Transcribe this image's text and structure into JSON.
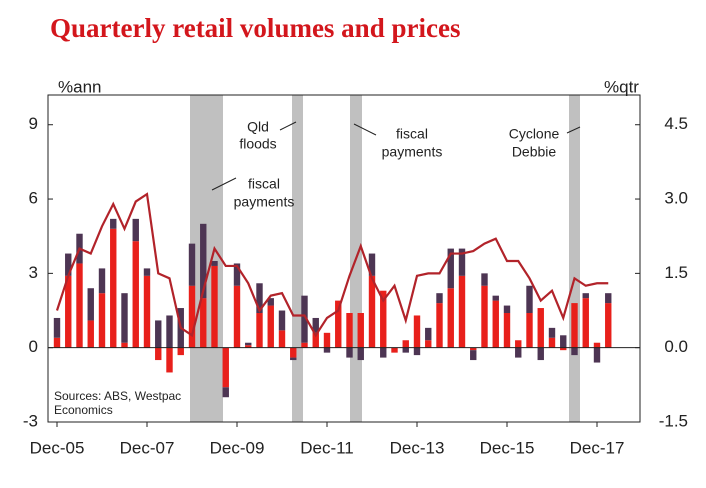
{
  "chart_data": {
    "type": "bar-line",
    "title": "Quarterly retail volumes and prices",
    "y_label": "%ann",
    "y2_label": "%qtr",
    "categories": [
      "Dec-05",
      null,
      null,
      null,
      null,
      null,
      null,
      null,
      "Dec-07",
      null,
      null,
      null,
      null,
      null,
      null,
      null,
      "Dec-09",
      null,
      null,
      null,
      null,
      null,
      null,
      null,
      "Dec-11",
      null,
      null,
      null,
      null,
      null,
      null,
      null,
      "Dec-13",
      null,
      null,
      null,
      null,
      null,
      null,
      null,
      "Dec-15",
      null,
      null,
      null,
      null,
      null,
      null,
      null,
      "Dec-17",
      null
    ],
    "series": [
      {
        "type": "bar",
        "axis": "y2",
        "color": "#e8201b",
        "values": [
          0.2,
          1.45,
          1.7,
          0.55,
          1.1,
          2.4,
          0.1,
          2.15,
          1.45,
          -0.25,
          -0.5,
          -0.15,
          1.25,
          1.0,
          1.65,
          -0.8,
          1.25,
          0.05,
          0.7,
          0.85,
          0.35,
          -0.2,
          0.1,
          0.3,
          0.3,
          0.95,
          0.7,
          0.7,
          1.45,
          1.15,
          -0.1,
          0.15,
          0.65,
          0.15,
          0.9,
          1.2,
          1.45,
          -0.05,
          1.25,
          0.95,
          0.7,
          0.15,
          0.7,
          0.8,
          0.2,
          -0.05,
          0.9,
          1.0,
          0.1,
          0.9
        ]
      },
      {
        "type": "bar",
        "axis": "y2",
        "color": "#4d3553",
        "values": [
          0.4,
          0.45,
          0.6,
          0.65,
          0.5,
          0.2,
          1.0,
          0.45,
          0.15,
          0.55,
          0.65,
          0.8,
          0.85,
          1.5,
          0.1,
          -0.2,
          0.45,
          0.05,
          0.6,
          0.15,
          0.4,
          -0.05,
          0.95,
          0.3,
          -0.1,
          0,
          -0.2,
          -0.25,
          0.45,
          -0.2,
          0,
          -0.1,
          -0.15,
          0.25,
          0.2,
          0.8,
          0.55,
          -0.2,
          0.25,
          0.1,
          0.15,
          -0.2,
          0.55,
          -0.25,
          0.2,
          0.25,
          -0.15,
          0.1,
          -0.3,
          0.2
        ]
      },
      {
        "type": "line",
        "color": "#b2232a",
        "values": [
          1.5,
          2.9,
          4.0,
          3.8,
          4.9,
          5.8,
          4.8,
          5.9,
          6.2,
          3.0,
          2.8,
          0.8,
          0.5,
          2.3,
          4.0,
          3.3,
          3.3,
          2.6,
          1.5,
          2.1,
          2.2,
          1.3,
          1.3,
          0.5,
          1.2,
          1.5,
          2.9,
          4.1,
          2.8,
          1.9,
          2.5,
          1.1,
          2.9,
          3.0,
          3.0,
          3.8,
          3.8,
          3.9,
          4.2,
          4.4,
          3.5,
          3.5,
          2.8,
          1.9,
          2.3,
          1.2,
          2.8,
          2.5,
          2.6,
          2.6
        ]
      }
    ],
    "ylim": [
      -3,
      10.2
    ],
    "yticks": [
      -3,
      0,
      3,
      6,
      9
    ],
    "y2lim": [
      -1.5,
      5.1
    ],
    "y2ticks": [
      -1.5,
      {
        "value": 0,
        "label": "0.0"
      },
      1.5,
      {
        "value": 3,
        "label": "3.0"
      },
      4.5
    ],
    "annotations": [
      {
        "lines": [
          "Qld",
          "floods"
        ]
      },
      {
        "lines": [
          "fiscal",
          "payments"
        ]
      },
      {
        "lines": [
          "fiscal",
          "payments"
        ]
      },
      {
        "lines": [
          "Cyclone",
          "Debbie"
        ]
      }
    ],
    "source": [
      "Sources: ABS, Westpac",
      "Economics"
    ]
  }
}
